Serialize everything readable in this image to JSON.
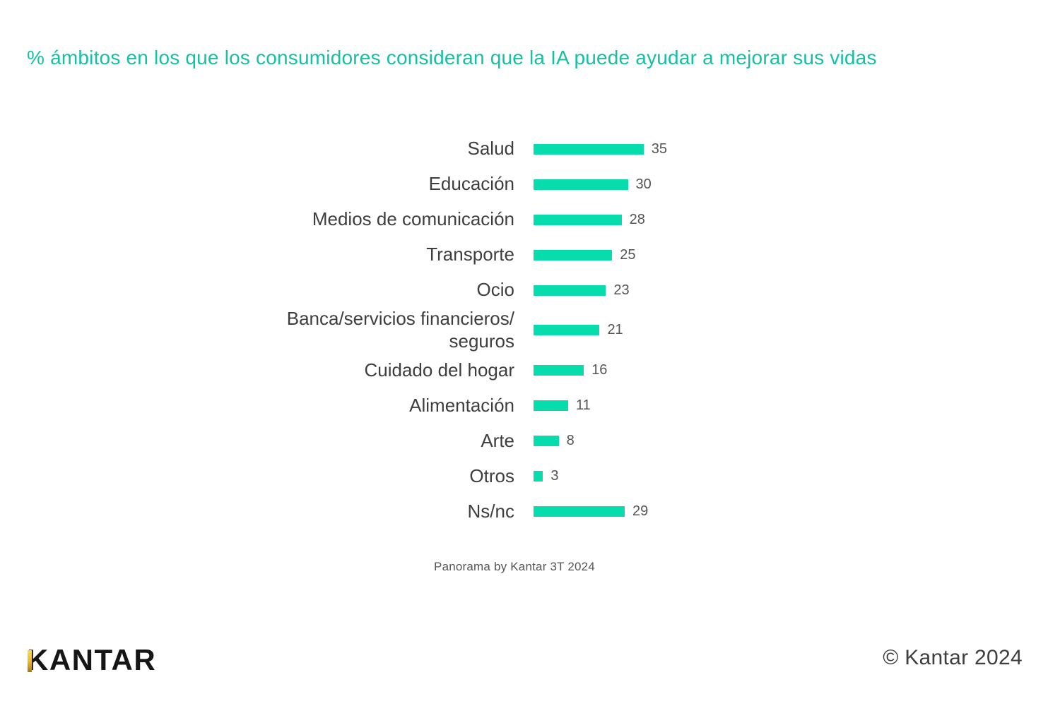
{
  "title": "% ámbitos en los que los consumidores consideran que la IA puede ayudar a mejorar sus vidas",
  "caption": "Panorama by Kantar 3T 2024",
  "footer": {
    "logo_text": "KANTAR",
    "copyright": "© Kantar 2024"
  },
  "colors": {
    "bar": "#06DCAC",
    "title": "#16C0A2",
    "label_text": "#3E3E3E",
    "value_text": "#545454",
    "logo_black": "#161616",
    "logo_gold": "#E8B82F"
  },
  "chart_data": {
    "type": "bar",
    "orientation": "horizontal",
    "title": "% ámbitos en los que los consumidores consideran que la IA puede ayudar a mejorar sus vidas",
    "categories": [
      "Salud",
      "Educación",
      "Medios de comunicación",
      "Transporte",
      "Ocio",
      "Banca/servicios financieros/\nseguros",
      "Cuidado del hogar",
      "Alimentación",
      "Arte",
      "Otros",
      "Ns/nc"
    ],
    "values": [
      35,
      30,
      28,
      25,
      23,
      21,
      16,
      11,
      8,
      3,
      29
    ],
    "value_labels": true,
    "xlim": [
      0,
      40
    ],
    "grid": false,
    "legend": false,
    "source": "Panorama by Kantar 3T 2024"
  }
}
